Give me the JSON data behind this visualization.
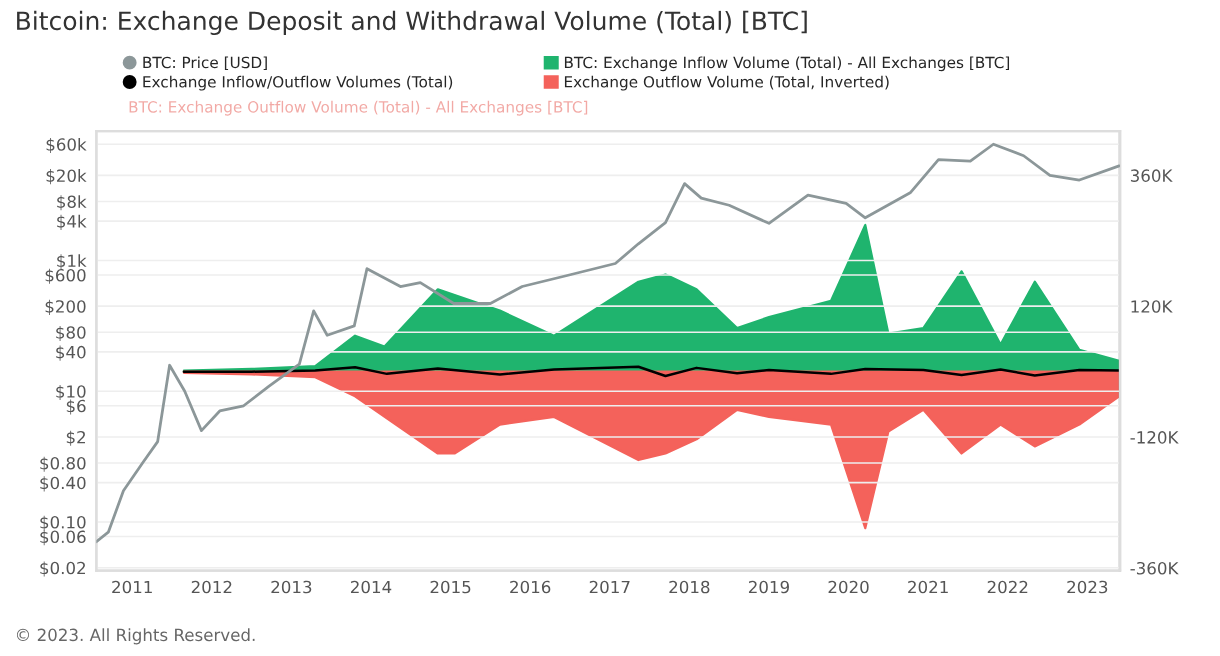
{
  "chart_data": {
    "type": "line",
    "title": "Bitcoin: Exchange Deposit and Withdrawal Volume (Total) [BTC]",
    "series": [
      {
        "name": "BTC: Price [USD]",
        "axis": "y",
        "color": "#8c9799",
        "x": [
          2010.55,
          2010.7,
          2010.89,
          2011.13,
          2011.32,
          2011.47,
          2011.66,
          2011.87,
          2012.1,
          2012.4,
          2012.72,
          2013.1,
          2013.28,
          2013.45,
          2013.79,
          2013.95,
          2014.37,
          2014.62,
          2015.04,
          2015.5,
          2015.9,
          2016.49,
          2017.07,
          2017.36,
          2017.7,
          2017.94,
          2018.15,
          2018.5,
          2019.0,
          2019.49,
          2019.97,
          2020.21,
          2020.78,
          2021.13,
          2021.53,
          2021.82,
          2022.2,
          2022.53,
          2022.9,
          2023.4
        ],
        "values": [
          0.05,
          0.07,
          0.3,
          0.8,
          1.7,
          25,
          10,
          2.5,
          5,
          6,
          12,
          26,
          170,
          72,
          100,
          750,
          400,
          460,
          220,
          220,
          400,
          600,
          900,
          1800,
          3800,
          15000,
          9000,
          7000,
          3700,
          10000,
          7500,
          4500,
          11000,
          35000,
          33000,
          60000,
          40000,
          20000,
          17000,
          28000
        ]
      },
      {
        "name": "Exchange Inflow/Outflow Volumes (Total)",
        "axis": "y2",
        "color": "#000000",
        "x": [
          2011.65,
          2012.5,
          2013.3,
          2013.8,
          2014.2,
          2014.84,
          2015.62,
          2016.3,
          2017.36,
          2017.7,
          2018.09,
          2018.6,
          2019.0,
          2019.78,
          2020.21,
          2020.94,
          2021.42,
          2021.91,
          2022.34,
          2022.9,
          2023.4
        ],
        "values": [
          0,
          0,
          2000,
          8000,
          -4000,
          6000,
          -5000,
          4000,
          9000,
          -8000,
          7000,
          -3000,
          3000,
          -4000,
          5000,
          3000,
          -6000,
          4000,
          -7000,
          3000,
          2000
        ]
      },
      {
        "name": "BTC: Exchange Inflow Volume (Total) - All Exchanges [BTC]",
        "type": "area",
        "axis": "y2",
        "color": "#1fb46e",
        "x": [
          2011.65,
          2012.5,
          2013.3,
          2013.8,
          2014.17,
          2014.84,
          2015.62,
          2016.3,
          2017.36,
          2017.7,
          2018.09,
          2018.6,
          2019.0,
          2019.78,
          2020.21,
          2020.5,
          2020.94,
          2021.42,
          2021.91,
          2022.34,
          2022.9,
          2023.4
        ],
        "values": [
          2000,
          5000,
          10000,
          66000,
          46000,
          151000,
          112000,
          66000,
          165000,
          178000,
          151000,
          80000,
          100000,
          130000,
          269000,
          70000,
          80000,
          184000,
          50000,
          165000,
          40000,
          20000
        ]
      },
      {
        "name": "Exchange Outflow Volume (Total, Inverted)",
        "type": "area",
        "axis": "y2",
        "color": "#f4625b",
        "x": [
          2011.65,
          2012.5,
          2013.3,
          2013.8,
          2014.84,
          2015.05,
          2015.62,
          2016.3,
          2017.36,
          2017.7,
          2018.09,
          2018.6,
          2019.0,
          2019.78,
          2020.21,
          2020.5,
          2020.94,
          2021.42,
          2021.91,
          2022.34,
          2022.9,
          2023.4
        ],
        "values": [
          -2000,
          -5000,
          -10000,
          -45000,
          -150000,
          -150000,
          -97000,
          -83000,
          -162000,
          -150000,
          -124000,
          -70000,
          -83000,
          -97000,
          -287000,
          -110000,
          -70000,
          -150000,
          -97000,
          -137000,
          -97000,
          -45000
        ]
      }
    ],
    "log": "y",
    "xlim": [
      2010.55,
      2023.41
    ],
    "xticks": [
      2011,
      2012,
      2013,
      2014,
      2015,
      2016,
      2017,
      2018,
      2019,
      2020,
      2021,
      2022,
      2023
    ],
    "ylim": [
      0.018,
      95000
    ],
    "yticks": [
      {
        "value": 0.02,
        "label": "$0.02"
      },
      {
        "value": 0.06,
        "label": "$0.06"
      },
      {
        "value": 0.1,
        "label": "$0.10"
      },
      {
        "value": 0.4,
        "label": "$0.40"
      },
      {
        "value": 0.8,
        "label": "$0.80"
      },
      {
        "value": 2,
        "label": "$2"
      },
      {
        "value": 6,
        "label": "$6"
      },
      {
        "value": 10,
        "label": "$10"
      },
      {
        "value": 40,
        "label": "$40"
      },
      {
        "value": 80,
        "label": "$80"
      },
      {
        "value": 200,
        "label": "$200"
      },
      {
        "value": 600,
        "label": "$600"
      },
      {
        "value": 1000,
        "label": "$1k"
      },
      {
        "value": 4000,
        "label": "$4k"
      },
      {
        "value": 8000,
        "label": "$8k"
      },
      {
        "value": 20000,
        "label": "$20k"
      },
      {
        "value": 60000,
        "label": "$60k"
      }
    ],
    "y2lim": [
      -365000,
      441000
    ],
    "y2ticks": [
      {
        "value": 360000,
        "label": "360K"
      },
      {
        "value": 120000,
        "label": "120K"
      },
      {
        "value": -120000,
        "label": "-120K"
      },
      {
        "value": -360000,
        "label": "-360K"
      }
    ],
    "grid": "y",
    "legend": "top left",
    "annotations": [
      "BTC: Exchange Outflow Volume (Total) - All Exchanges [BTC]",
      "© 2023. All Rights Reserved."
    ]
  }
}
